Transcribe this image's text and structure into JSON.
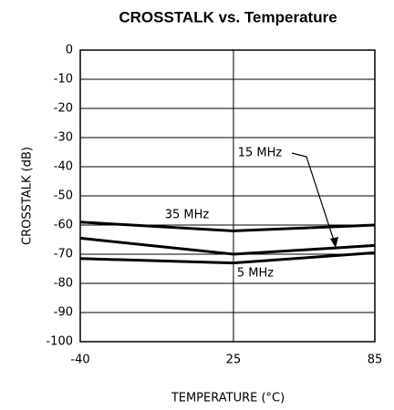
{
  "chart_data": {
    "type": "line",
    "title": "CROSSTALK vs. Temperature",
    "xlabel": "TEMPERATURE (°C)",
    "ylabel": "CROSSTALK (dB)",
    "x": [
      -40,
      25,
      85
    ],
    "series": [
      {
        "name": "35 MHz",
        "color": "#000000",
        "values": [
          -59,
          -62,
          -60
        ]
      },
      {
        "name": "15 MHz",
        "color": "#000000",
        "values": [
          -64.5,
          -70,
          -67
        ]
      },
      {
        "name": "5 MHz",
        "color": "#000000",
        "values": [
          -71.5,
          -73,
          -69.5
        ]
      }
    ],
    "xlim": [
      -40,
      85
    ],
    "xticks": [
      -40,
      25,
      85
    ],
    "ylim": [
      -100,
      0
    ],
    "yticks": [
      -100,
      -90,
      -80,
      -70,
      -60,
      -50,
      -40,
      -30,
      -20,
      -10,
      0
    ],
    "grid": true
  }
}
